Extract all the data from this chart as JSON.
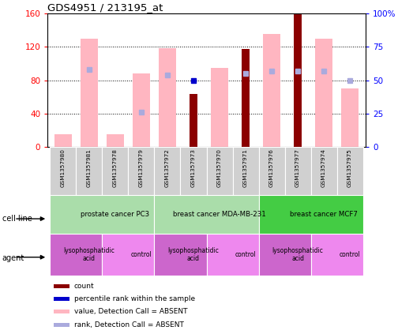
{
  "title": "GDS4951 / 213195_at",
  "samples": [
    "GSM1357980",
    "GSM1357981",
    "GSM1357978",
    "GSM1357979",
    "GSM1357972",
    "GSM1357973",
    "GSM1357970",
    "GSM1357971",
    "GSM1357976",
    "GSM1357977",
    "GSM1357974",
    "GSM1357975"
  ],
  "count": [
    null,
    null,
    null,
    null,
    null,
    63,
    null,
    117,
    null,
    160,
    null,
    null
  ],
  "percentile_rank": [
    null,
    null,
    null,
    null,
    null,
    50,
    null,
    null,
    null,
    null,
    null,
    null
  ],
  "value_absent": [
    15,
    130,
    15,
    88,
    118,
    null,
    95,
    null,
    135,
    null,
    130,
    70
  ],
  "rank_absent": [
    null,
    58,
    null,
    26,
    54,
    null,
    null,
    55,
    57,
    57,
    57,
    50
  ],
  "ylim_left": [
    0,
    160
  ],
  "ylim_right": [
    0,
    100
  ],
  "cell_line_groups": [
    {
      "label": "prostate cancer PC3",
      "start": 0,
      "end": 4,
      "color": "#aaddaa"
    },
    {
      "label": "breast cancer MDA-MB-231",
      "start": 4,
      "end": 8,
      "color": "#aaddaa"
    },
    {
      "label": "breast cancer MCF7",
      "start": 8,
      "end": 12,
      "color": "#44cc44"
    }
  ],
  "agent_groups": [
    {
      "label": "lysophosphatidic\nacid",
      "start": 0,
      "end": 2
    },
    {
      "label": "control",
      "start": 2,
      "end": 4
    },
    {
      "label": "lysophosphatidic\nacid",
      "start": 4,
      "end": 6
    },
    {
      "label": "control",
      "start": 6,
      "end": 8
    },
    {
      "label": "lysophosphatidic\nacid",
      "start": 8,
      "end": 10
    },
    {
      "label": "control",
      "start": 10,
      "end": 12
    }
  ],
  "color_count": "#8b0000",
  "color_percentile": "#0000cc",
  "color_value_absent": "#ffb6c1",
  "color_rank_absent": "#aaaadd",
  "legend_items": [
    {
      "label": "count",
      "color": "#8b0000"
    },
    {
      "label": "percentile rank within the sample",
      "color": "#0000cc"
    },
    {
      "label": "value, Detection Call = ABSENT",
      "color": "#ffb6c1"
    },
    {
      "label": "rank, Detection Call = ABSENT",
      "color": "#aaaadd"
    }
  ]
}
